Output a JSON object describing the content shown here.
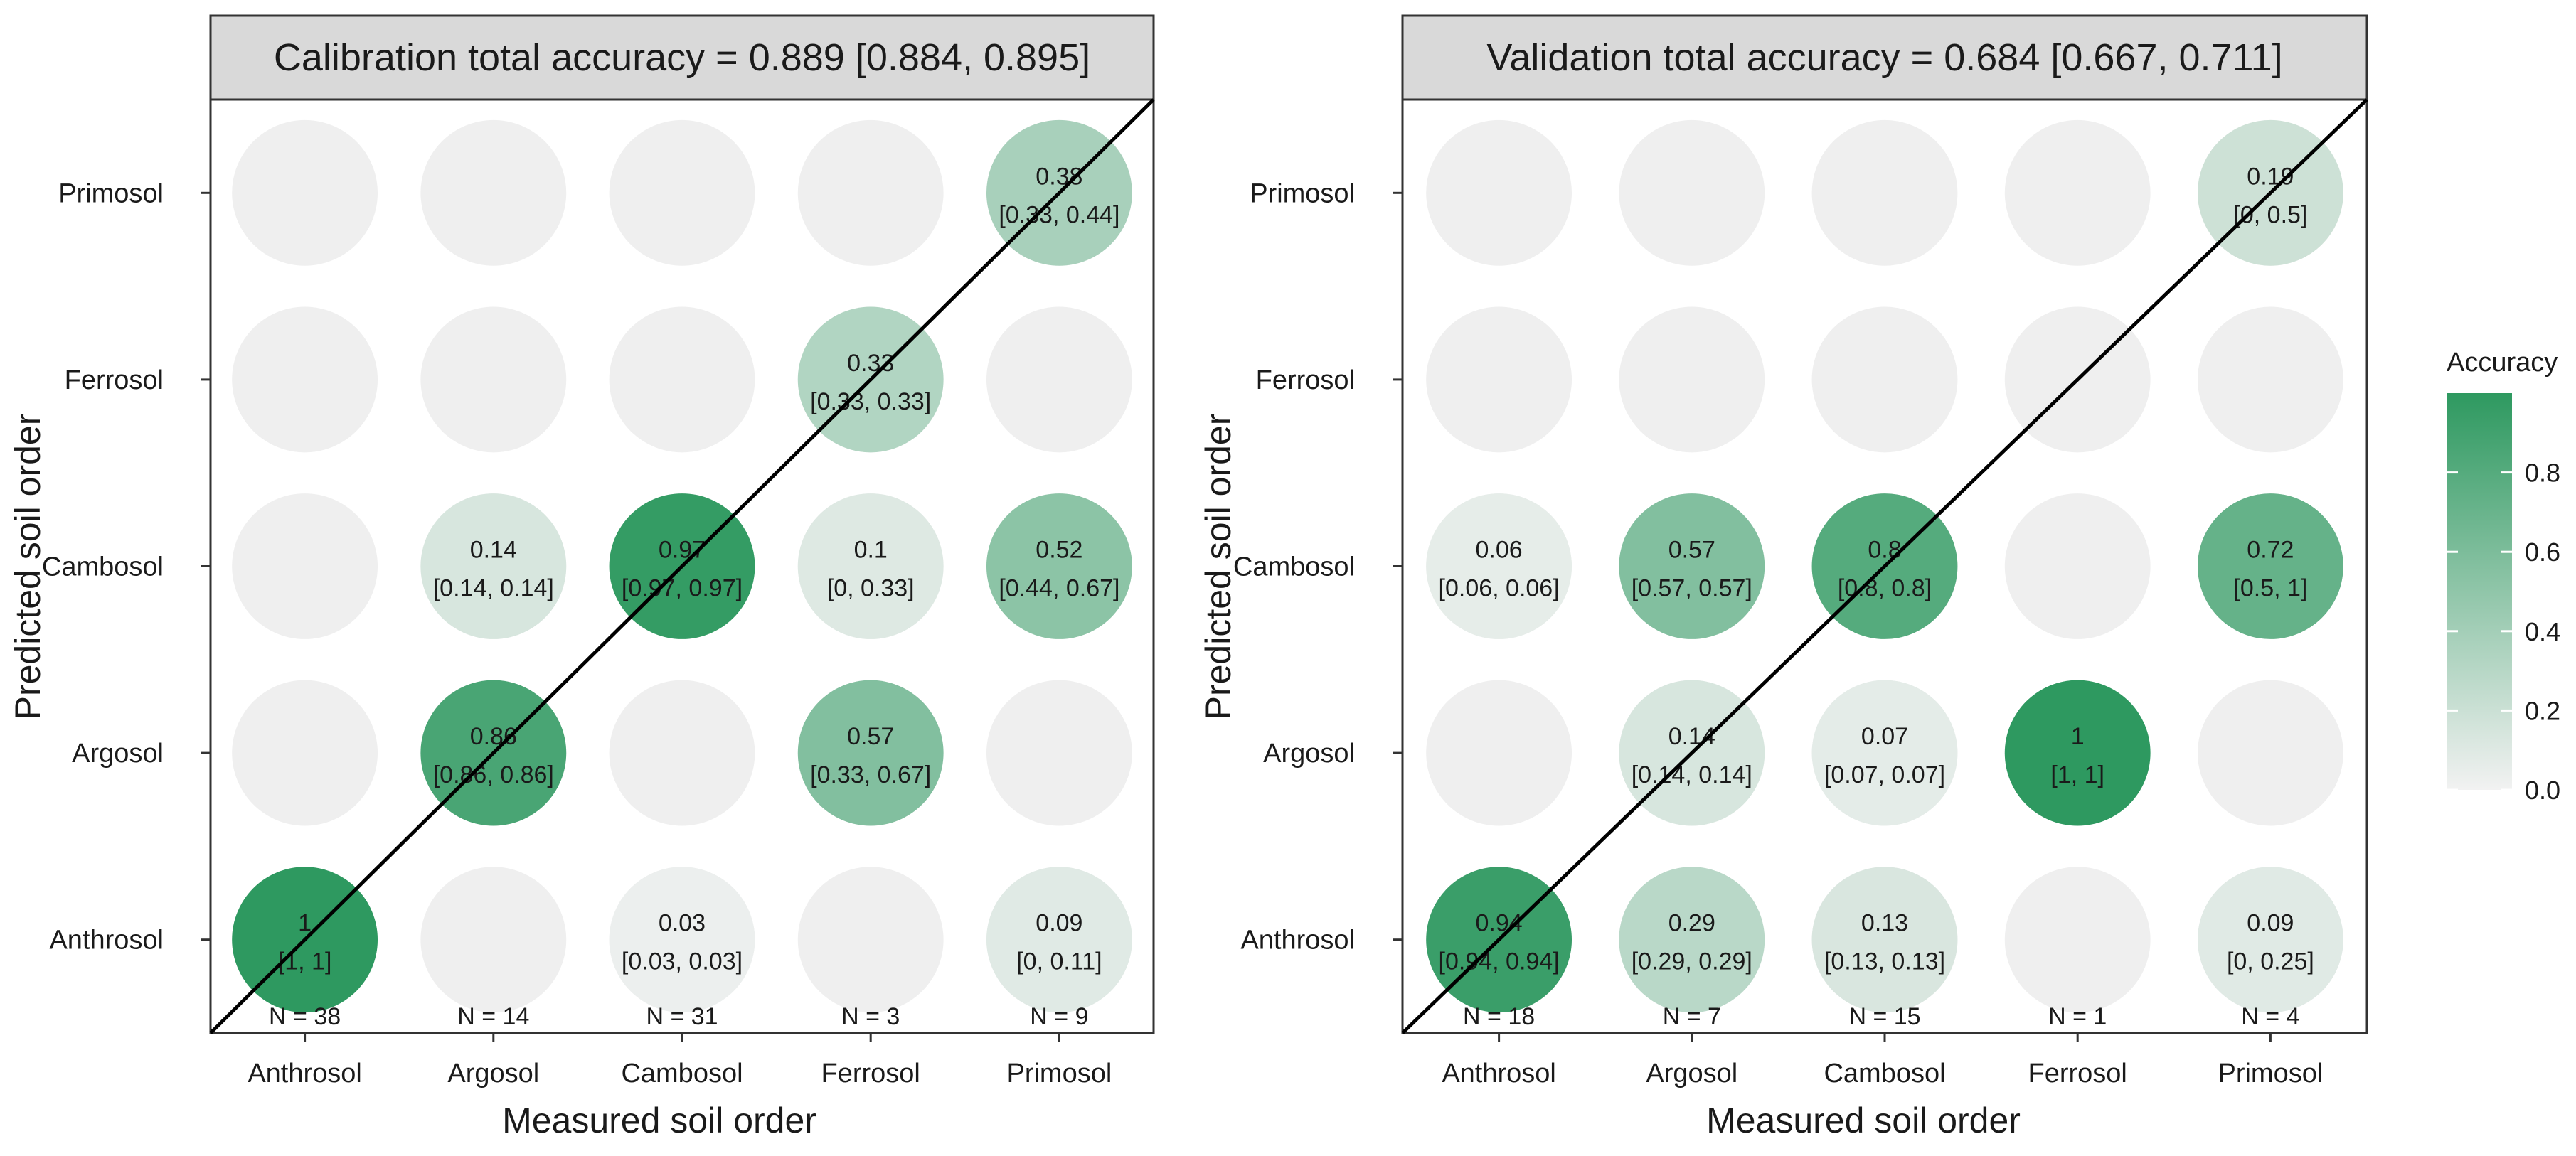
{
  "chart_data": [
    {
      "type": "bubble-matrix",
      "title": "Calibration total accuracy = 0.889 [0.884, 0.895]",
      "xlabel": "Measured soil order",
      "ylabel": "Predicted soil order",
      "x_categories": [
        "Anthrosol",
        "Argosol",
        "Cambosol",
        "Ferrosol",
        "Primosol"
      ],
      "y_categories": [
        "Anthrosol",
        "Argosol",
        "Cambosol",
        "Ferrosol",
        "Primosol"
      ],
      "n_labels": [
        "N = 38",
        "N = 14",
        "N = 31",
        "N = 3",
        "N = 9"
      ],
      "cells": [
        {
          "x": "Anthrosol",
          "y": "Anthrosol",
          "value": 1,
          "label": "1",
          "ci": "[1, 1]"
        },
        {
          "x": "Argosol",
          "y": "Argosol",
          "value": 0.86,
          "label": "0.86",
          "ci": "[0.86, 0.86]"
        },
        {
          "x": "Argosol",
          "y": "Cambosol",
          "value": 0.14,
          "label": "0.14",
          "ci": "[0.14, 0.14]"
        },
        {
          "x": "Cambosol",
          "y": "Anthrosol",
          "value": 0.03,
          "label": "0.03",
          "ci": "[0.03, 0.03]"
        },
        {
          "x": "Cambosol",
          "y": "Cambosol",
          "value": 0.97,
          "label": "0.97",
          "ci": "[0.97, 0.97]"
        },
        {
          "x": "Ferrosol",
          "y": "Argosol",
          "value": 0.57,
          "label": "0.57",
          "ci": "[0.33, 0.67]"
        },
        {
          "x": "Ferrosol",
          "y": "Cambosol",
          "value": 0.1,
          "label": "0.1",
          "ci": "[0, 0.33]"
        },
        {
          "x": "Ferrosol",
          "y": "Ferrosol",
          "value": 0.33,
          "label": "0.33",
          "ci": "[0.33, 0.33]"
        },
        {
          "x": "Primosol",
          "y": "Anthrosol",
          "value": 0.09,
          "label": "0.09",
          "ci": "[0, 0.11]"
        },
        {
          "x": "Primosol",
          "y": "Cambosol",
          "value": 0.52,
          "label": "0.52",
          "ci": "[0.44, 0.67]"
        },
        {
          "x": "Primosol",
          "y": "Primosol",
          "value": 0.38,
          "label": "0.38",
          "ci": "[0.33, 0.44]"
        }
      ]
    },
    {
      "type": "bubble-matrix",
      "title": "Validation total accuracy = 0.684 [0.667, 0.711]",
      "xlabel": "Measured soil order",
      "ylabel": "Predicted soil order",
      "x_categories": [
        "Anthrosol",
        "Argosol",
        "Cambosol",
        "Ferrosol",
        "Primosol"
      ],
      "y_categories": [
        "Anthrosol",
        "Argosol",
        "Cambosol",
        "Ferrosol",
        "Primosol"
      ],
      "n_labels": [
        "N = 18",
        "N = 7",
        "N = 15",
        "N = 1",
        "N = 4"
      ],
      "cells": [
        {
          "x": "Anthrosol",
          "y": "Anthrosol",
          "value": 0.94,
          "label": "0.94",
          "ci": "[0.94, 0.94]"
        },
        {
          "x": "Anthrosol",
          "y": "Cambosol",
          "value": 0.06,
          "label": "0.06",
          "ci": "[0.06, 0.06]"
        },
        {
          "x": "Argosol",
          "y": "Anthrosol",
          "value": 0.29,
          "label": "0.29",
          "ci": "[0.29, 0.29]"
        },
        {
          "x": "Argosol",
          "y": "Argosol",
          "value": 0.14,
          "label": "0.14",
          "ci": "[0.14, 0.14]"
        },
        {
          "x": "Argosol",
          "y": "Cambosol",
          "value": 0.57,
          "label": "0.57",
          "ci": "[0.57, 0.57]"
        },
        {
          "x": "Cambosol",
          "y": "Anthrosol",
          "value": 0.13,
          "label": "0.13",
          "ci": "[0.13, 0.13]"
        },
        {
          "x": "Cambosol",
          "y": "Argosol",
          "value": 0.07,
          "label": "0.07",
          "ci": "[0.07, 0.07]"
        },
        {
          "x": "Cambosol",
          "y": "Cambosol",
          "value": 0.8,
          "label": "0.8",
          "ci": "[0.8, 0.8]"
        },
        {
          "x": "Ferrosol",
          "y": "Argosol",
          "value": 1,
          "label": "1",
          "ci": "[1, 1]"
        },
        {
          "x": "Primosol",
          "y": "Anthrosol",
          "value": 0.09,
          "label": "0.09",
          "ci": "[0, 0.25]"
        },
        {
          "x": "Primosol",
          "y": "Cambosol",
          "value": 0.72,
          "label": "0.72",
          "ci": "[0.5, 1]"
        },
        {
          "x": "Primosol",
          "y": "Primosol",
          "value": 0.19,
          "label": "0.19",
          "ci": "[0, 0.5]"
        }
      ]
    }
  ],
  "legend": {
    "title": "Accuracy",
    "ticks": [
      "0.0",
      "0.2",
      "0.4",
      "0.6",
      "0.8"
    ],
    "tick_values": [
      0,
      0.2,
      0.4,
      0.6,
      0.8
    ],
    "range": [
      0,
      1
    ]
  },
  "colors": {
    "empty_cell": "#efefef",
    "low": "#f2f2f2",
    "high": "#2e9960",
    "strip": "#d9d9d9",
    "diagonal": "#000000"
  }
}
